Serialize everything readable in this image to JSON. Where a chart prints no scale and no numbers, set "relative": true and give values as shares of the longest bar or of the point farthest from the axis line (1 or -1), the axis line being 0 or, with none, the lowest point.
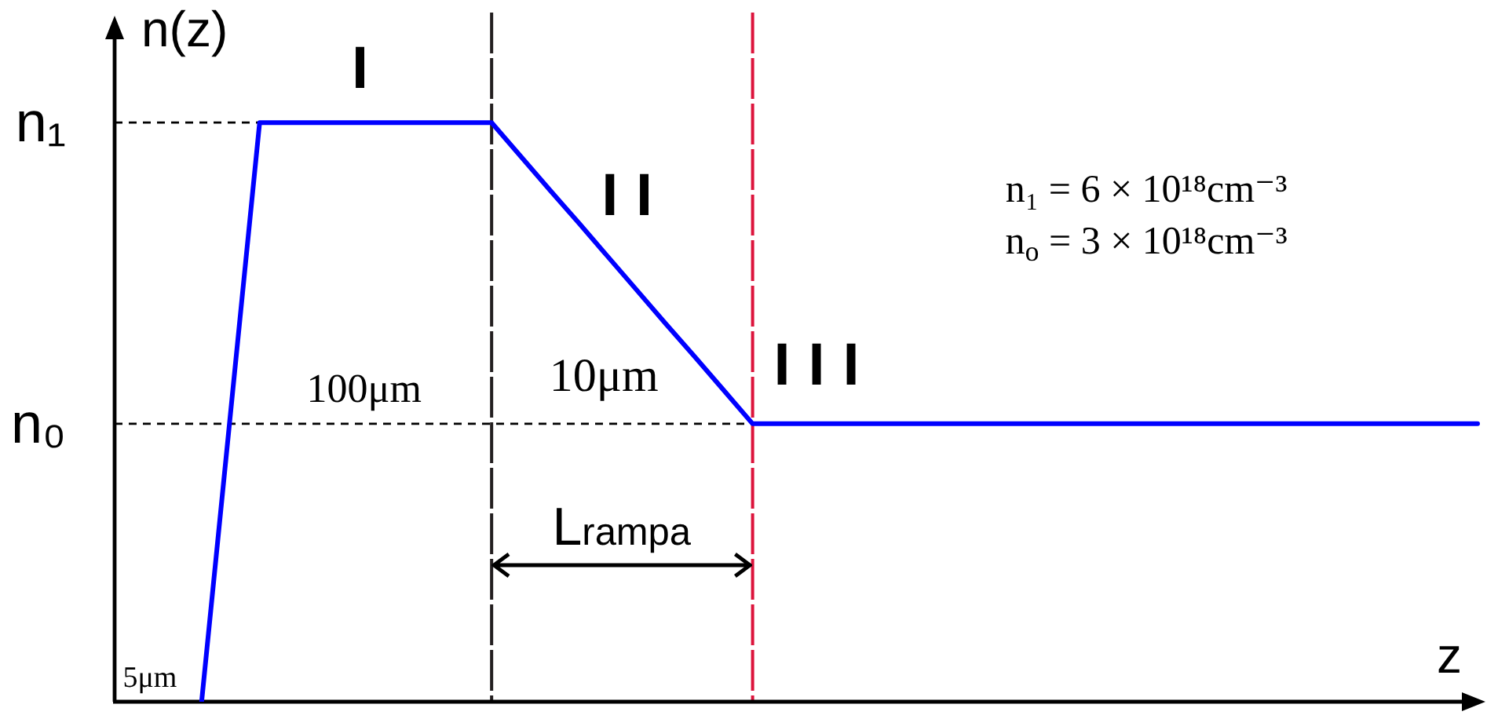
{
  "chart_data": {
    "type": "line",
    "xlabel": "z",
    "ylabel": "n(z)",
    "relative": true,
    "tick_labels": false,
    "marker": "none",
    "categories": [
      null,
      null,
      null,
      null,
      null,
      null,
      null,
      null,
      null,
      null,
      null,
      null,
      null,
      null,
      null,
      null,
      null,
      null,
      null,
      null,
      null,
      null,
      null,
      null,
      null,
      null,
      null,
      null,
      null,
      null,
      null,
      null,
      null,
      null,
      null,
      null,
      null,
      null,
      null,
      null,
      null,
      null,
      null,
      null,
      null,
      null,
      null,
      null
    ],
    "series": [
      {
        "color": "#0000ff",
        "values": [
          null,
          null,
          null,
          0,
          0.5,
          1,
          1,
          1,
          1,
          1,
          1,
          1,
          1,
          1,
          0.942,
          0.884,
          0.827,
          0.769,
          0.711,
          0.653,
          0.596,
          0.538,
          0.48,
          0.48,
          0.48,
          0.48,
          0.48,
          0.48,
          0.48,
          0.48,
          0.48,
          0.48,
          0.48,
          0.48,
          0.48,
          0.48,
          0.48,
          0.48,
          0.48,
          0.48,
          0.48,
          0.48,
          0.48,
          0.48,
          0.48,
          0.48,
          0.48,
          0.48
        ]
      }
    ],
    "ref_lines": [
      {
        "axis": "y",
        "value": 1,
        "label": "n₁",
        "color": "#000000",
        "line_style": "dashed"
      },
      {
        "axis": "y",
        "value": 0.48,
        "label": "n₀",
        "color": "#000000",
        "line_style": "dashed"
      }
    ],
    "annotations": [
      "I",
      "II",
      "III",
      "100μm",
      "10μm",
      "5μm",
      "L$_{rampa}$",
      "n₁ = 6 × 10¹⁸cm⁻³",
      "n$_{o}$ = 3 × 10¹⁸cm⁻³"
    ]
  }
}
